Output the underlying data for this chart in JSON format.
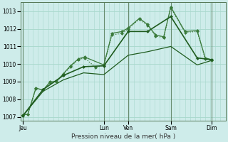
{
  "xlabel": "Pression niveau de la mer( hPa )",
  "ylim": [
    1006.8,
    1013.5
  ],
  "yticks": [
    1007,
    1008,
    1009,
    1010,
    1011,
    1012,
    1013
  ],
  "bg_color": "#ceecea",
  "grid_color": "#a8d8cc",
  "vline_color": "#557755",
  "day_labels": [
    "Jeu",
    "Lun",
    "Ven",
    "Sam",
    "Dim"
  ],
  "day_positions": [
    0.0,
    0.4,
    0.52,
    0.73,
    0.93
  ],
  "num_cols": 20,
  "series1": {
    "x": [
      0.0,
      0.025,
      0.065,
      0.1,
      0.135,
      0.165,
      0.2,
      0.235,
      0.275,
      0.305,
      0.36,
      0.4,
      0.44,
      0.49,
      0.52,
      0.575,
      0.615,
      0.655,
      0.695,
      0.73,
      0.8,
      0.86,
      0.9,
      0.93
    ],
    "y": [
      1007.1,
      1007.15,
      1008.6,
      1008.55,
      1008.95,
      1009.0,
      1009.4,
      1009.85,
      1010.25,
      1010.35,
      1009.8,
      1009.95,
      1011.65,
      1011.75,
      1012.0,
      1012.55,
      1012.2,
      1011.6,
      1011.5,
      1013.2,
      1011.8,
      1011.85,
      1010.3,
      1010.2
    ],
    "color": "#3a7a3a",
    "linestyle": "dotted",
    "marker": "D",
    "markersize": 2.5,
    "linewidth": 0.9
  },
  "series2": {
    "x": [
      0.0,
      0.025,
      0.065,
      0.1,
      0.135,
      0.165,
      0.2,
      0.235,
      0.275,
      0.305,
      0.4,
      0.44,
      0.49,
      0.52,
      0.575,
      0.615,
      0.655,
      0.695,
      0.73,
      0.8,
      0.86,
      0.9,
      0.93
    ],
    "y": [
      1007.1,
      1007.15,
      1008.65,
      1008.5,
      1009.0,
      1009.0,
      1009.45,
      1009.9,
      1010.3,
      1010.4,
      1009.95,
      1011.75,
      1011.85,
      1012.05,
      1012.6,
      1012.25,
      1011.65,
      1011.55,
      1013.25,
      1011.85,
      1011.9,
      1010.35,
      1010.25
    ],
    "color": "#3a7a3a",
    "linestyle": "solid",
    "marker": "D",
    "markersize": 2.5,
    "linewidth": 0.9
  },
  "series3": {
    "x": [
      0.0,
      0.1,
      0.2,
      0.3,
      0.4,
      0.52,
      0.615,
      0.73,
      0.86,
      0.93
    ],
    "y": [
      1007.05,
      1008.55,
      1009.35,
      1009.85,
      1009.9,
      1011.85,
      1011.85,
      1012.7,
      1010.35,
      1010.25
    ],
    "color": "#1f5c1f",
    "linestyle": "solid",
    "marker": "D",
    "markersize": 2.5,
    "linewidth": 1.2
  },
  "series4": {
    "x": [
      0.0,
      0.1,
      0.2,
      0.3,
      0.4,
      0.52,
      0.615,
      0.73,
      0.86,
      0.93
    ],
    "y": [
      1007.05,
      1008.45,
      1009.1,
      1009.5,
      1009.4,
      1010.5,
      1010.7,
      1011.0,
      1009.95,
      1010.2
    ],
    "color": "#1f5c1f",
    "linestyle": "solid",
    "marker": null,
    "markersize": 0,
    "linewidth": 0.9
  }
}
